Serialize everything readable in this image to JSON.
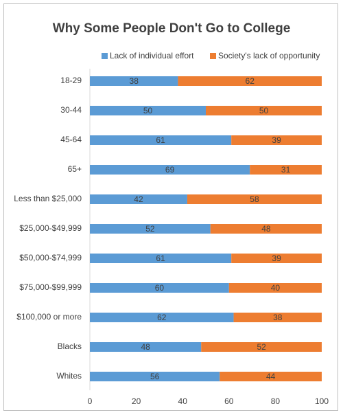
{
  "chart_data": {
    "type": "stacked-bar-horizontal",
    "title": "Why Some People Don't Go to College",
    "categories": [
      "18-29",
      "30-44",
      "45-64",
      "65+",
      "Less than $25,000",
      "$25,000-$49,999",
      "$50,000-$74,999",
      "$75,000-$99,999",
      "$100,000 or more",
      "Blacks",
      "Whites"
    ],
    "series": [
      {
        "name": "Lack of individual effort",
        "color": "#5b9bd5",
        "values": [
          38,
          50,
          61,
          69,
          42,
          52,
          61,
          60,
          62,
          48,
          56
        ]
      },
      {
        "name": "Society's lack of opportunity",
        "color": "#ed7d31",
        "values": [
          62,
          50,
          39,
          31,
          58,
          48,
          39,
          40,
          38,
          52,
          44
        ]
      }
    ],
    "xlim": [
      0,
      100
    ],
    "xticks": [
      0,
      20,
      40,
      60,
      80,
      100
    ],
    "grid": false,
    "legend": "top"
  }
}
